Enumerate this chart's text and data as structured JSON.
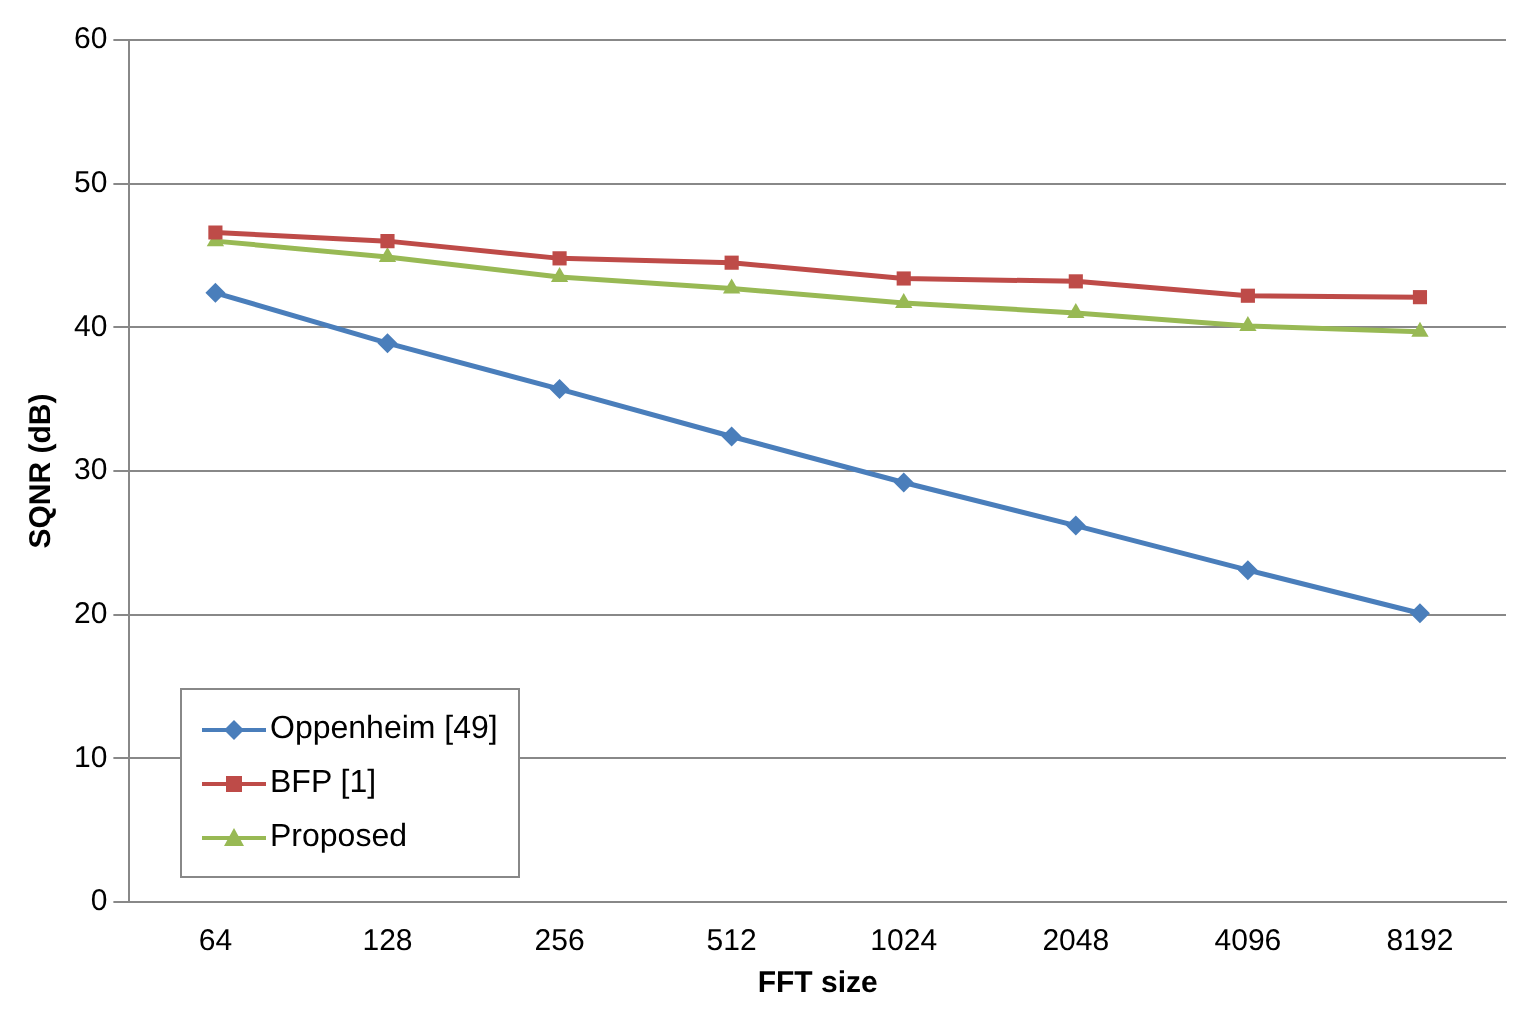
{
  "chart_data": {
    "type": "line",
    "xlabel": "FFT size",
    "ylabel": "SQNR (dB)",
    "categories": [
      "64",
      "128",
      "256",
      "512",
      "1024",
      "2048",
      "4096",
      "8192"
    ],
    "series": [
      {
        "name": "Oppenheim [49]",
        "color": "#4a7ebb",
        "marker": "diamond",
        "values": [
          42.4,
          38.9,
          35.7,
          32.4,
          29.2,
          26.2,
          23.1,
          20.1
        ]
      },
      {
        "name": "BFP [1]",
        "color": "#be4b48",
        "marker": "square",
        "values": [
          46.6,
          46.0,
          44.8,
          44.5,
          43.4,
          43.2,
          42.2,
          42.1
        ]
      },
      {
        "name": "Proposed",
        "color": "#98b954",
        "marker": "triangle",
        "values": [
          46.0,
          44.9,
          43.5,
          42.7,
          41.7,
          41.0,
          40.1,
          39.7
        ]
      }
    ],
    "ylim": [
      0,
      60
    ],
    "yticks": [
      0,
      10,
      20,
      30,
      40,
      50,
      60
    ],
    "grid": "y",
    "legend": "bottom left"
  }
}
